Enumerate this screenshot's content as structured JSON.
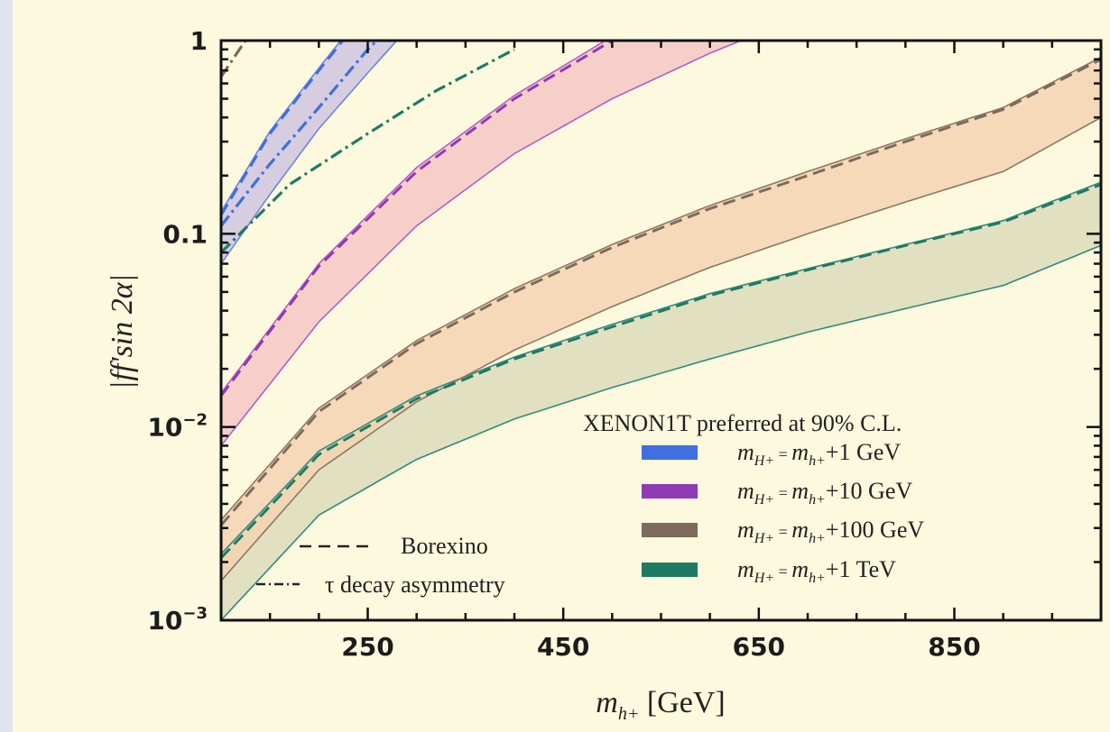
{
  "chart_data": {
    "type": "area",
    "xlabel": "m_{h+}  [GeV]",
    "ylabel": "|ff'sin 2α|",
    "xlim": [
      100,
      1000
    ],
    "ylim": [
      0.001,
      1
    ],
    "yscale": "log",
    "x_ticks": [
      250,
      450,
      650,
      850
    ],
    "y_ticks": [
      {
        "value": 0.001,
        "label": "10",
        "exp": "−3"
      },
      {
        "value": 0.01,
        "label": "10",
        "exp": "−2"
      },
      {
        "value": 0.1,
        "label": "0.1",
        "exp": ""
      },
      {
        "value": 1,
        "label": "1",
        "exp": ""
      }
    ],
    "legend_title": "XENON1T preferred at 90% C.L.",
    "legend_position": "lower-right",
    "series": [
      {
        "name": "+1 GeV",
        "label_parts": [
          "m",
          "H+",
          " = ",
          "m",
          "h+",
          "+1 GeV"
        ],
        "legend_color": "#3f6fe0",
        "fill": "#cfc6e2",
        "edge": "#6f83d8",
        "x": [
          100,
          150,
          200,
          250,
          300
        ],
        "upper": [
          0.13,
          0.34,
          0.72,
          1.5,
          2.8
        ],
        "lower": [
          0.07,
          0.16,
          0.35,
          0.68,
          1.3
        ],
        "borexino": [
          0.125,
          0.33,
          0.7,
          1.45,
          2.7
        ],
        "tau": [
          0.11,
          0.23,
          0.45,
          0.9,
          1.6
        ]
      },
      {
        "name": "+10 GeV",
        "label_parts": [
          "m",
          "H+",
          " = ",
          "m",
          "h+",
          "+10 GeV"
        ],
        "legend_color": "#8e3bb4",
        "fill": "#f6c8c5",
        "edge": "#b45cc6",
        "x": [
          100,
          200,
          300,
          400,
          500,
          600,
          700
        ],
        "upper": [
          0.015,
          0.07,
          0.22,
          0.52,
          1.05,
          1.9,
          3.1
        ],
        "lower": [
          0.008,
          0.035,
          0.11,
          0.26,
          0.5,
          0.86,
          1.38
        ],
        "borexino": [
          0.0145,
          0.068,
          0.21,
          0.5,
          1.0,
          1.8,
          3.0
        ]
      },
      {
        "name": "+100 GeV",
        "label_parts": [
          "m",
          "H+",
          " = ",
          "m",
          "h+",
          "+100 GeV"
        ],
        "legend_color": "#7e6a5c",
        "fill": "#f3d3b2",
        "edge": "#8d7565",
        "x": [
          100,
          200,
          300,
          400,
          500,
          600,
          700,
          800,
          900,
          1000
        ],
        "upper": [
          0.0033,
          0.0125,
          0.028,
          0.052,
          0.088,
          0.14,
          0.21,
          0.31,
          0.45,
          0.82
        ],
        "lower": [
          0.0016,
          0.006,
          0.0135,
          0.025,
          0.042,
          0.067,
          0.1,
          0.146,
          0.21,
          0.4
        ],
        "borexino": [
          0.0031,
          0.012,
          0.027,
          0.05,
          0.085,
          0.135,
          0.2,
          0.3,
          0.44,
          0.8
        ],
        "tau": [
          0.65,
          1.3
        ]
      },
      {
        "name": "+1 TeV",
        "label_parts": [
          "m",
          "H+",
          " = ",
          "m",
          "h+",
          "+1 TeV"
        ],
        "legend_color": "#1f7a64",
        "fill": "#dcdcbb",
        "edge": "#2f8b7e",
        "x": [
          100,
          200,
          300,
          400,
          500,
          600,
          700,
          800,
          900,
          1000
        ],
        "upper": [
          0.0022,
          0.0075,
          0.0145,
          0.023,
          0.034,
          0.049,
          0.066,
          0.088,
          0.117,
          0.185
        ],
        "lower": [
          0.001,
          0.0035,
          0.0068,
          0.011,
          0.016,
          0.0225,
          0.031,
          0.041,
          0.054,
          0.087
        ],
        "borexino": [
          0.0021,
          0.0072,
          0.014,
          0.0225,
          0.033,
          0.048,
          0.065,
          0.087,
          0.115,
          0.18
        ],
        "tau": [
          0.08,
          0.18,
          0.33,
          0.55,
          0.9
        ]
      }
    ],
    "line_legend": [
      {
        "style": "dashed",
        "label": "Borexino"
      },
      {
        "style": "dashdot",
        "label": "τ decay asymmetry"
      }
    ]
  }
}
